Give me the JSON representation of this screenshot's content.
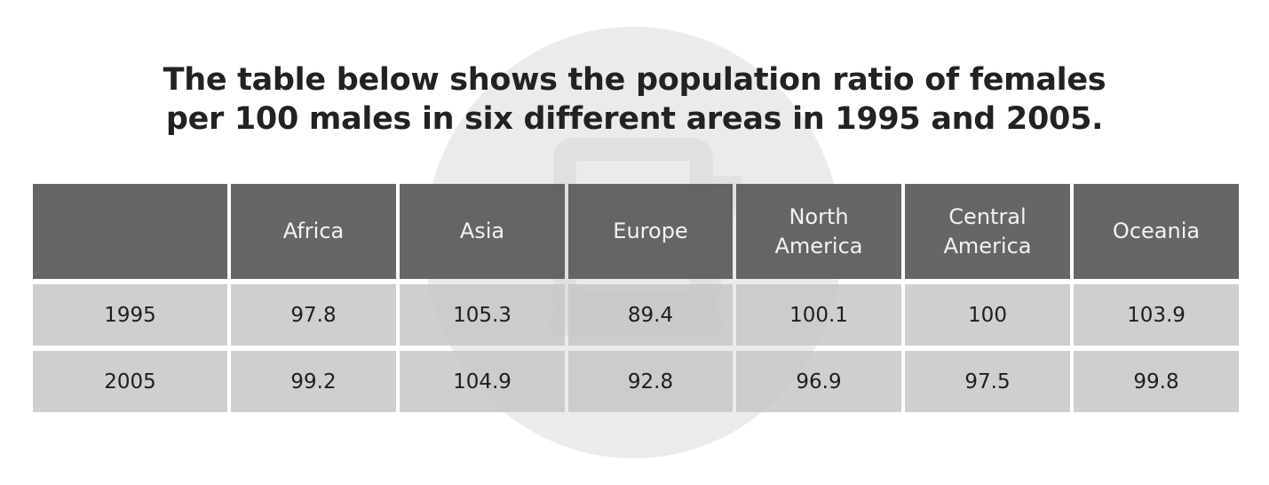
{
  "title": {
    "line1": "The table below shows the population ratio of females",
    "line2": "per 100 males in six different areas in 1995 and 2005."
  },
  "chart_data": {
    "type": "table",
    "title": "The table below shows the population ratio of females per 100 males in six different areas in 1995 and 2005.",
    "columns": [
      "",
      "Africa",
      "Asia",
      "Europe",
      "North\nAmerica",
      "Central\nAmerica",
      "Oceania"
    ],
    "rows": [
      {
        "label": "1995",
        "values": [
          "97.8",
          "105.3",
          "89.4",
          "100.1",
          "100",
          "103.9"
        ]
      },
      {
        "label": "2005",
        "values": [
          "99.2",
          "104.9",
          "92.8",
          "96.9",
          "97.5",
          "99.8"
        ]
      }
    ]
  },
  "colors": {
    "header_bg": "#5a5a5a",
    "header_text": "#f2f2f2",
    "body_bg": "#c4c4c4",
    "body_text": "#1e1e1e",
    "title_text": "#222222",
    "watermark": "#e9e9e9"
  },
  "icons": {
    "watermark": "laptop-logo-watermark-icon"
  }
}
